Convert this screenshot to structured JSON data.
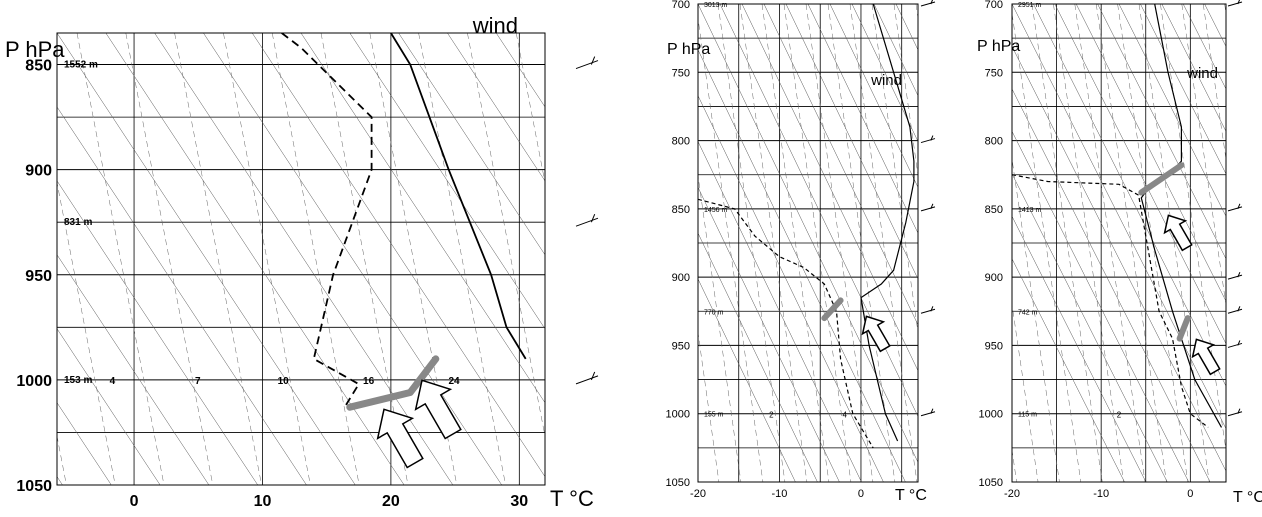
{
  "chart_data": [
    {
      "type": "line",
      "title": "",
      "xlabel": "T °C",
      "ylabel": "P hPa",
      "wind_label": "wind",
      "xlim": [
        -6,
        32
      ],
      "ylim": [
        1050,
        835
      ],
      "x_ticks": [
        "0",
        "10",
        "20",
        "30"
      ],
      "y_ticks": [
        "850",
        "900",
        "950",
        "1000",
        "1050"
      ],
      "height_labels": [
        {
          "p": 850,
          "text": "1552 m"
        },
        {
          "p": 925,
          "text": "831 m"
        },
        {
          "p": 1000,
          "text": "153 m"
        }
      ],
      "mixing_ratio_labels": [
        "4",
        "7",
        "10",
        "16",
        "24"
      ],
      "series": [
        {
          "style": "solid",
          "points": [
            [
              20.0,
              835
            ],
            [
              21.5,
              850
            ],
            [
              24.5,
              900
            ],
            [
              27.8,
              950
            ],
            [
              29.0,
              975
            ],
            [
              30.5,
              990
            ]
          ]
        },
        {
          "style": "dashed",
          "points": [
            [
              11.5,
              835
            ],
            [
              13.0,
              842
            ],
            [
              18.5,
              875
            ],
            [
              18.5,
              900
            ],
            [
              17.0,
              925
            ],
            [
              15.5,
              950
            ],
            [
              14.0,
              990
            ],
            [
              17.5,
              1002
            ],
            [
              16.5,
              1012
            ]
          ]
        }
      ],
      "highlights": [
        [
          [
            16.8,
            1013
          ],
          [
            21.5,
            1006
          ],
          [
            23.5,
            990
          ]
        ]
      ],
      "wind_barb_levels": [
        850,
        925,
        1000
      ]
    },
    {
      "type": "line",
      "title": "",
      "xlabel": "T °C",
      "ylabel": "P hPa",
      "wind_label": "wind",
      "xlim": [
        -20,
        7
      ],
      "ylim": [
        1050,
        700
      ],
      "x_ticks": [
        "-20",
        "-10",
        "0"
      ],
      "y_ticks": [
        "700",
        "750",
        "800",
        "850",
        "900",
        "950",
        "1000",
        "1050"
      ],
      "height_labels": [
        {
          "p": 700,
          "text": "3013 m"
        },
        {
          "p": 850,
          "text": "1456 m"
        },
        {
          "p": 925,
          "text": "770 m"
        },
        {
          "p": 1000,
          "text": "155 m"
        }
      ],
      "mixing_ratio_labels": [
        "2",
        "4"
      ],
      "series": [
        {
          "style": "solid",
          "points": [
            [
              1.5,
              700
            ],
            [
              4.0,
              750
            ],
            [
              6.0,
              790
            ],
            [
              6.5,
              815
            ],
            [
              6.5,
              830
            ],
            [
              5.5,
              860
            ],
            [
              4.0,
              895
            ],
            [
              2.5,
              905
            ],
            [
              0.0,
              915
            ],
            [
              1.0,
              950
            ],
            [
              3.0,
              1000
            ],
            [
              4.5,
              1020
            ]
          ]
        },
        {
          "style": "dashed",
          "points": [
            [
              -20.0,
              843
            ],
            [
              -15.5,
              850
            ],
            [
              -13.0,
              870
            ],
            [
              -10.0,
              885
            ],
            [
              -7.0,
              893
            ],
            [
              -4.5,
              905
            ],
            [
              -3.0,
              925
            ],
            [
              -2.5,
              960
            ],
            [
              -1.0,
              1000
            ],
            [
              1.5,
              1025
            ]
          ]
        }
      ],
      "highlights": [
        [
          [
            -4.5,
            930
          ],
          [
            -2.5,
            917
          ]
        ]
      ],
      "wind_barb_levels": [
        700,
        800,
        850,
        925,
        1000
      ]
    },
    {
      "type": "line",
      "title": "",
      "xlabel": "T °C",
      "ylabel": "P hPa",
      "wind_label": "wind",
      "xlim": [
        -20,
        4
      ],
      "ylim": [
        1050,
        700
      ],
      "x_ticks": [
        "-20",
        "-10",
        "0"
      ],
      "y_ticks": [
        "700",
        "750",
        "800",
        "850",
        "900",
        "950",
        "1000",
        "1050"
      ],
      "height_labels": [
        {
          "p": 700,
          "text": "2951 m"
        },
        {
          "p": 850,
          "text": "1413 m"
        },
        {
          "p": 925,
          "text": "742 m"
        },
        {
          "p": 1000,
          "text": "115 m"
        }
      ],
      "mixing_ratio_labels": [
        "2"
      ],
      "series": [
        {
          "style": "solid",
          "points": [
            [
              -4.0,
              700
            ],
            [
              -2.5,
              750
            ],
            [
              -1.0,
              790
            ],
            [
              -1.0,
              815
            ],
            [
              -2.0,
              822
            ],
            [
              -4.5,
              833
            ],
            [
              -5.5,
              842
            ],
            [
              -4.0,
              880
            ],
            [
              -2.0,
              925
            ],
            [
              0.5,
              975
            ],
            [
              3.5,
              1010
            ]
          ]
        },
        {
          "style": "dashed",
          "points": [
            [
              -20.0,
              825
            ],
            [
              -16.0,
              830
            ],
            [
              -8.0,
              832
            ],
            [
              -5.8,
              840
            ],
            [
              -5.0,
              870
            ],
            [
              -3.5,
              925
            ],
            [
              -2.0,
              945
            ],
            [
              -1.0,
              980
            ],
            [
              0.0,
              1000
            ],
            [
              2.0,
              1010
            ]
          ]
        }
      ],
      "highlights": [
        [
          [
            -5.5,
            838
          ],
          [
            -1.0,
            818
          ]
        ],
        [
          [
            -1.2,
            945
          ],
          [
            -0.3,
            930
          ]
        ]
      ],
      "wind_barb_levels": [
        700,
        850,
        900,
        925,
        950,
        1000
      ]
    }
  ]
}
